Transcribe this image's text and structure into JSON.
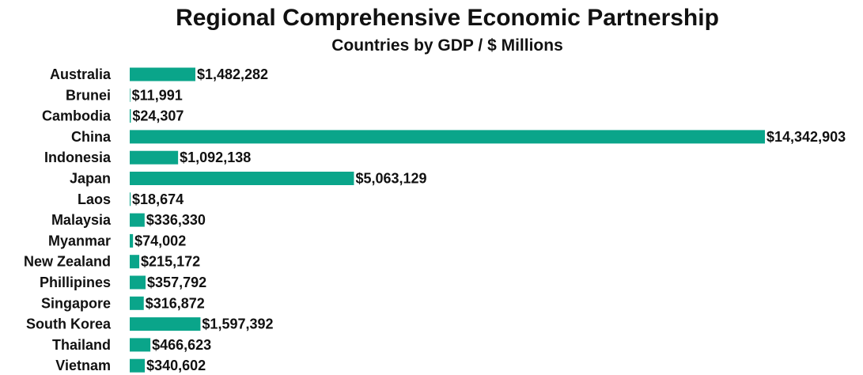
{
  "chart_data": {
    "type": "bar",
    "orientation": "horizontal",
    "title": "Regional Comprehensive Economic Partnership",
    "subtitle": "Countries by GDP / $ Millions",
    "xlabel": "",
    "ylabel": "",
    "categories": [
      "Australia",
      "Brunei",
      "Cambodia",
      "China",
      "Indonesia",
      "Japan",
      "Laos",
      "Malaysia",
      "Myanmar",
      "New Zealand",
      "Phillipines",
      "Singapore",
      "South Korea",
      "Thailand",
      "Vietnam"
    ],
    "values": [
      1482282,
      11991,
      24307,
      14342903,
      1092138,
      5063129,
      18674,
      336330,
      74002,
      215172,
      357792,
      316872,
      1597392,
      466623,
      340602
    ],
    "value_labels": [
      "$1,482,282",
      "$11,991",
      "$24,307",
      "$14,342,903",
      "$1,092,138",
      "$5,063,129",
      "$18,674",
      "$336,330",
      "$74,002",
      "$215,172",
      "$357,792",
      "$316,872",
      "$1,597,392",
      "$466,623",
      "$340,602"
    ],
    "xlim": [
      0,
      14342903
    ],
    "grid": false,
    "legend": "none",
    "bar_color": "#0aa58a"
  }
}
